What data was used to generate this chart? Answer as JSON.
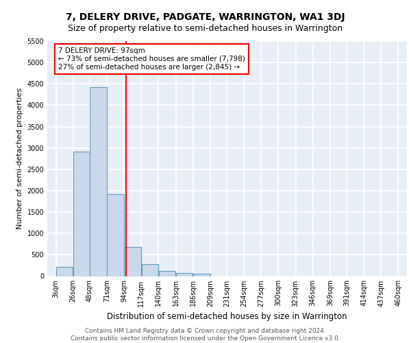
{
  "title1": "7, DELERY DRIVE, PADGATE, WARRINGTON, WA1 3DJ",
  "title2": "Size of property relative to semi-detached houses in Warrington",
  "xlabel": "Distribution of semi-detached houses by size in Warrington",
  "ylabel": "Number of semi-detached properties",
  "bin_labels": [
    "3sqm",
    "26sqm",
    "48sqm",
    "71sqm",
    "94sqm",
    "117sqm",
    "140sqm",
    "163sqm",
    "186sqm",
    "209sqm",
    "231sqm",
    "254sqm",
    "277sqm",
    "300sqm",
    "323sqm",
    "346sqm",
    "369sqm",
    "391sqm",
    "414sqm",
    "437sqm",
    "460sqm"
  ],
  "bin_edges": [
    3,
    26,
    48,
    71,
    94,
    117,
    140,
    163,
    186,
    209,
    231,
    254,
    277,
    300,
    323,
    346,
    369,
    391,
    414,
    437,
    460
  ],
  "bar_heights": [
    220,
    2920,
    4430,
    1920,
    690,
    280,
    120,
    80,
    50,
    0,
    0,
    0,
    0,
    0,
    0,
    0,
    0,
    0,
    0,
    0
  ],
  "bar_color": "#c9d9ea",
  "bar_edge_color": "#6699bb",
  "property_value": 97,
  "vline_color": "red",
  "annotation_text": "7 DELERY DRIVE: 97sqm\n← 73% of semi-detached houses are smaller (7,798)\n27% of semi-detached houses are larger (2,845) →",
  "annotation_box_color": "white",
  "annotation_box_edge": "red",
  "ylim": [
    0,
    5500
  ],
  "yticks": [
    0,
    500,
    1000,
    1500,
    2000,
    2500,
    3000,
    3500,
    4000,
    4500,
    5000,
    5500
  ],
  "background_color": "#e8eef6",
  "grid_color": "white",
  "footer": "Contains HM Land Registry data © Crown copyright and database right 2024.\nContains public sector information licensed under the Open Government Licence v3.0.",
  "title1_fontsize": 10,
  "title2_fontsize": 9,
  "xlabel_fontsize": 8.5,
  "ylabel_fontsize": 8,
  "tick_fontsize": 7,
  "annotation_fontsize": 7.5,
  "footer_fontsize": 6.5
}
